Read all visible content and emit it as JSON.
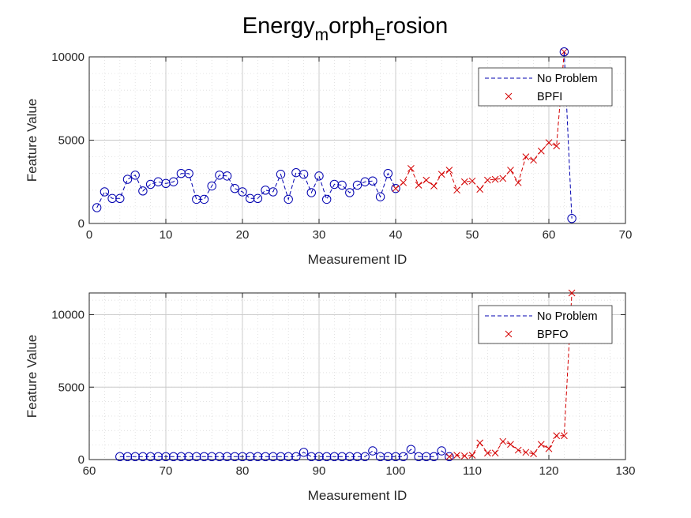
{
  "figure": {
    "title": "Energy",
    "title_sub1": "m",
    "title_mid": "orph",
    "title_sub2": "E",
    "title_end": "rosion"
  },
  "colors": {
    "no_problem": "#0000b0",
    "fault": "#d40000",
    "grid": "#dcdcdc",
    "axis": "#262626"
  },
  "chart_data": [
    {
      "type": "line",
      "xlabel": "Measurement ID",
      "ylabel": "Feature Value",
      "xlim": [
        0,
        70
      ],
      "ylim": [
        0,
        10000
      ],
      "xticks": [
        0,
        10,
        20,
        30,
        40,
        50,
        60,
        70
      ],
      "yticks": [
        0,
        5000,
        10000
      ],
      "grid": true,
      "minor_grid": true,
      "legend_position": "top-right",
      "series": [
        {
          "name": "No Problem",
          "style": "dashed-line-circle-markers",
          "x": [
            1,
            2,
            3,
            4,
            5,
            6,
            7,
            8,
            9,
            10,
            11,
            12,
            13,
            14,
            15,
            16,
            17,
            18,
            19,
            20,
            21,
            22,
            23,
            24,
            25,
            26,
            27,
            28,
            29,
            30,
            31,
            32,
            33,
            34,
            35,
            36,
            37,
            38,
            39,
            40
          ],
          "y": [
            950,
            1900,
            1500,
            1500,
            2650,
            2900,
            1950,
            2350,
            2500,
            2400,
            2500,
            3000,
            3000,
            1450,
            1450,
            2250,
            2900,
            2850,
            2100,
            1900,
            1500,
            1500,
            2000,
            1900,
            2950,
            1450,
            3050,
            2950,
            1850,
            2850,
            1450,
            2350,
            2300,
            1850,
            2300,
            2500,
            2550,
            1600,
            3000,
            2100
          ]
        },
        {
          "name": "BPFI",
          "style": "dashed-line-x-markers",
          "x": [
            40,
            41,
            42,
            43,
            44,
            45,
            46,
            47,
            48,
            49,
            50,
            51,
            52,
            53,
            54,
            55,
            56,
            57,
            58,
            59,
            60,
            61,
            62
          ],
          "y": [
            2100,
            2450,
            3300,
            2300,
            2600,
            2250,
            2950,
            3200,
            2000,
            2500,
            2550,
            2050,
            2600,
            2650,
            2700,
            3200,
            2450,
            4000,
            3800,
            4350,
            4850,
            4650,
            10300
          ]
        },
        {
          "name": "",
          "style": "dashed-line-circle-markers",
          "x": [
            62,
            63
          ],
          "y": [
            10300,
            300
          ]
        }
      ]
    },
    {
      "type": "line",
      "xlabel": "Measurement ID",
      "ylabel": "Feature Value",
      "xlim": [
        60,
        130
      ],
      "ylim": [
        0,
        11500
      ],
      "xticks": [
        60,
        70,
        80,
        90,
        100,
        110,
        120,
        130
      ],
      "yticks": [
        0,
        5000,
        10000
      ],
      "grid": true,
      "minor_grid": true,
      "legend_position": "top-right",
      "series": [
        {
          "name": "No Problem",
          "style": "dashed-line-circle-markers",
          "x": [
            64,
            65,
            66,
            67,
            68,
            69,
            70,
            71,
            72,
            73,
            74,
            75,
            76,
            77,
            78,
            79,
            80,
            81,
            82,
            83,
            84,
            85,
            86,
            87,
            88,
            89,
            90,
            91,
            92,
            93,
            94,
            95,
            96,
            97,
            98,
            99,
            100,
            101,
            102,
            103,
            104,
            105,
            106,
            107
          ],
          "y": [
            200,
            200,
            200,
            200,
            200,
            200,
            200,
            200,
            200,
            200,
            200,
            200,
            200,
            200,
            200,
            200,
            200,
            200,
            200,
            200,
            200,
            200,
            200,
            200,
            500,
            200,
            200,
            200,
            200,
            200,
            200,
            200,
            200,
            600,
            200,
            200,
            200,
            200,
            700,
            200,
            200,
            200,
            600,
            200
          ]
        },
        {
          "name": "BPFO",
          "style": "dashed-line-x-markers",
          "x": [
            107,
            108,
            109,
            110,
            111,
            112,
            113,
            114,
            115,
            116,
            117,
            118,
            119,
            120,
            121,
            122,
            123
          ],
          "y": [
            200,
            300,
            250,
            300,
            1150,
            450,
            450,
            1250,
            1050,
            650,
            500,
            400,
            1050,
            750,
            1650,
            1650,
            11500
          ]
        }
      ]
    }
  ]
}
